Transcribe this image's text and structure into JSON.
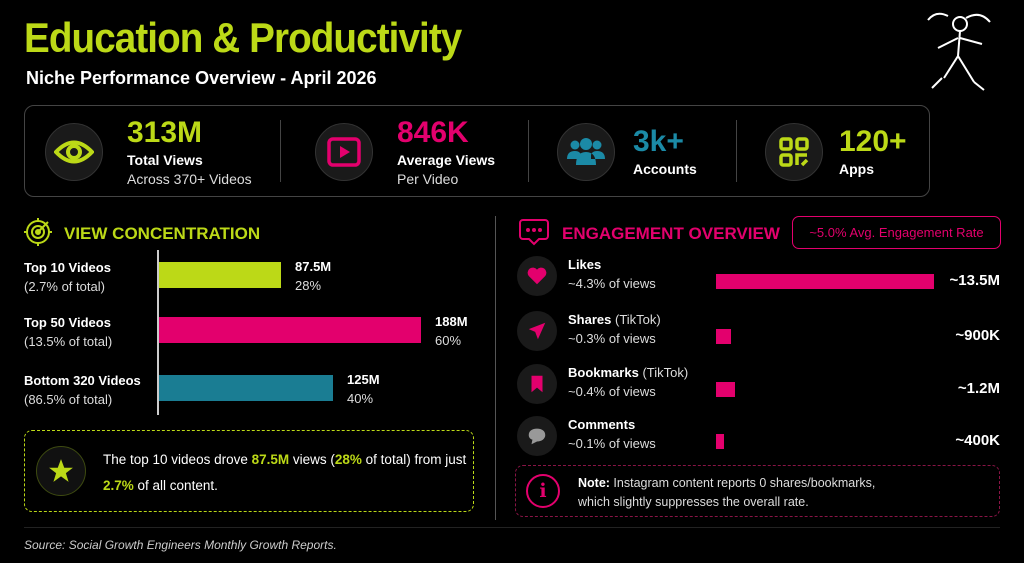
{
  "header": {
    "title": "Education & Productivity",
    "subtitle": "Niche Performance Overview - April 2026"
  },
  "colors": {
    "green": "#bcd917",
    "pink": "#e3006d",
    "teal": "#1a7d93",
    "teal_text": "#1b8aa6"
  },
  "stats": [
    {
      "icon": "eye-icon",
      "value": "313M",
      "label": "Total Views",
      "sub": "Across 370+ Videos"
    },
    {
      "icon": "play-icon",
      "value": "846K",
      "label": "Average Views",
      "sub": "Per Video"
    },
    {
      "icon": "users-icon",
      "value": "3k+",
      "label": "Accounts"
    },
    {
      "icon": "apps-icon",
      "value": "120+",
      "label": "Apps"
    }
  ],
  "view_concentration": {
    "title": "VIEW CONCENTRATION",
    "icon": "target-icon",
    "callout": {
      "p1": "The top 10 videos drove ",
      "h1": "87.5M",
      "p2": " views (",
      "h2": "28%",
      "p3": " of total) from just ",
      "h3": "2.7%",
      "p4": " of all content."
    }
  },
  "engagement": {
    "title": "ENGAGEMENT OVERVIEW",
    "icon": "chat-icon",
    "badge": "~5.0% Avg. Engagement Rate",
    "note_bold": "Note:",
    "note_text": " Instagram content reports 0 shares/bookmarks,",
    "note_text2": "which slightly suppresses the overall rate."
  },
  "chart_data": [
    {
      "type": "bar",
      "title": "VIEW CONCENTRATION",
      "orientation": "horizontal",
      "categories": [
        "Top 10 Videos",
        "Top 50 Videos",
        "Bottom 320 Videos"
      ],
      "subs": [
        "(2.7% of total)",
        "(13.5% of total)",
        "(86.5% of total)"
      ],
      "values": [
        87.5,
        188,
        125
      ],
      "value_labels": [
        "87.5M",
        "188M",
        "125M"
      ],
      "pct_labels": [
        "28%",
        "60%",
        "40%"
      ],
      "unit": "M views"
    },
    {
      "type": "bar",
      "title": "ENGAGEMENT OVERVIEW",
      "orientation": "horizontal",
      "categories": [
        "Likes",
        "Shares",
        "Bookmarks",
        "Comments"
      ],
      "qualifiers": [
        "",
        "(TikTok)",
        "(TikTok)",
        ""
      ],
      "subs": [
        "~4.3% of views",
        "~0.3% of views",
        "~0.4% of views",
        "~0.1% of views"
      ],
      "values": [
        13.5,
        0.9,
        1.2,
        0.4
      ],
      "value_labels": [
        "~13.5M",
        "~900K",
        "~1.2M",
        "~400K"
      ],
      "icons": [
        "heart-icon",
        "send-icon",
        "bookmark-icon",
        "comment-icon"
      ],
      "unit": "M"
    }
  ],
  "footer": {
    "source": "Source: Social Growth Engineers Monthly Growth Reports."
  }
}
